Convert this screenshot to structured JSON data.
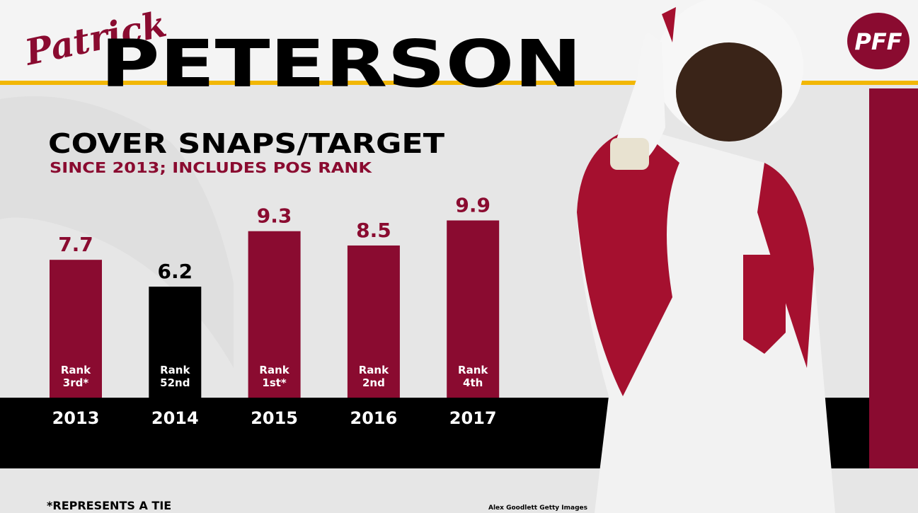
{
  "header": {
    "first_name": "Patrick",
    "last_name": "PETERSON",
    "logo": "PFF"
  },
  "chart_data": {
    "type": "bar",
    "title": "COVER SNAPS/TARGET",
    "subtitle": "SINCE 2013; INCLUDES POS RANK",
    "categories": [
      "2013",
      "2014",
      "2015",
      "2016",
      "2017"
    ],
    "values": [
      7.7,
      6.2,
      9.3,
      8.5,
      9.9
    ],
    "colors": [
      "#8a0b30",
      "#000000",
      "#8a0b30",
      "#8a0b30",
      "#8a0b30"
    ],
    "rank_labels": [
      [
        "Rank",
        "3rd*"
      ],
      [
        "Rank",
        "52nd"
      ],
      [
        "Rank",
        "1st*"
      ],
      [
        "Rank",
        "2nd"
      ],
      [
        "Rank",
        "4th"
      ]
    ]
  },
  "footnote": "*REPRESENTS A TIE",
  "credit": "Alex Goodlett Getty Images"
}
